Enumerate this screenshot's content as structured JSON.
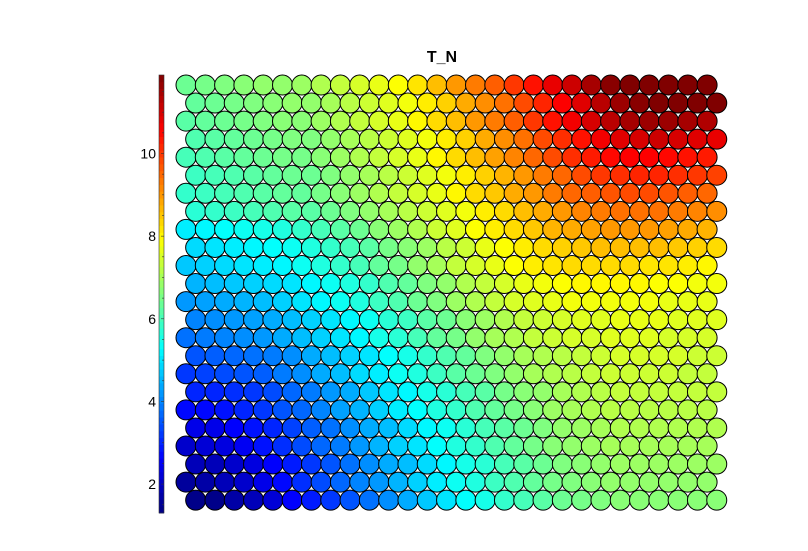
{
  "chart_data": {
    "type": "heatmap",
    "title": "T_N",
    "xlabel": "",
    "ylabel": "",
    "grid": "hexagonal",
    "rows": 24,
    "cols": 28,
    "colorbar": {
      "range": [
        1.3,
        11.9
      ],
      "ticks": [
        2,
        4,
        6,
        8,
        10
      ],
      "tick_labels": [
        "2",
        "4",
        "6",
        "8",
        "10"
      ],
      "colormap": "jet",
      "orientation": "vertical",
      "placement": "left"
    },
    "values": [
      [
        6.4,
        6.5,
        6.6,
        6.7,
        6.8,
        6.8,
        6.9,
        7.1,
        7.3,
        7.5,
        7.7,
        7.9,
        8.2,
        8.6,
        9.0,
        9.3,
        9.6,
        10.0,
        10.4,
        10.8,
        11.1,
        11.5,
        11.8,
        11.9,
        11.9,
        11.9,
        11.9,
        11.9
      ],
      [
        6.3,
        6.4,
        6.5,
        6.6,
        6.7,
        6.8,
        6.8,
        7.0,
        7.2,
        7.4,
        7.6,
        7.8,
        8.1,
        8.4,
        8.8,
        9.1,
        9.4,
        9.8,
        10.2,
        10.6,
        10.9,
        11.3,
        11.6,
        11.8,
        11.9,
        11.9,
        11.9,
        11.9
      ],
      [
        6.2,
        6.3,
        6.4,
        6.5,
        6.6,
        6.7,
        6.7,
        6.9,
        7.1,
        7.3,
        7.5,
        7.7,
        8.0,
        8.3,
        8.6,
        9.0,
        9.3,
        9.6,
        10.0,
        10.4,
        10.7,
        11.0,
        11.3,
        11.5,
        11.6,
        11.6,
        11.5,
        11.4
      ],
      [
        6.1,
        6.2,
        6.3,
        6.4,
        6.5,
        6.6,
        6.6,
        6.8,
        7.0,
        7.2,
        7.4,
        7.6,
        7.8,
        8.1,
        8.4,
        8.8,
        9.1,
        9.4,
        9.8,
        10.1,
        10.4,
        10.7,
        10.9,
        11.0,
        11.1,
        11.0,
        10.9,
        10.8
      ],
      [
        6.0,
        6.1,
        6.2,
        6.3,
        6.4,
        6.5,
        6.5,
        6.7,
        6.9,
        7.1,
        7.3,
        7.5,
        7.7,
        8.0,
        8.3,
        8.6,
        8.9,
        9.2,
        9.5,
        9.8,
        10.1,
        10.3,
        10.5,
        10.6,
        10.6,
        10.5,
        10.4,
        10.3
      ],
      [
        5.9,
        6.0,
        6.1,
        6.2,
        6.3,
        6.4,
        6.4,
        6.6,
        6.8,
        7.0,
        7.2,
        7.4,
        7.6,
        7.8,
        8.1,
        8.4,
        8.7,
        9.0,
        9.3,
        9.5,
        9.8,
        10.0,
        10.1,
        10.2,
        10.2,
        10.1,
        10.0,
        9.9
      ],
      [
        5.8,
        5.9,
        6.0,
        6.1,
        6.2,
        6.3,
        6.3,
        6.5,
        6.7,
        6.9,
        7.1,
        7.3,
        7.5,
        7.7,
        8.0,
        8.3,
        8.5,
        8.8,
        9.0,
        9.3,
        9.5,
        9.6,
        9.7,
        9.8,
        9.8,
        9.7,
        9.6,
        9.5
      ],
      [
        5.7,
        5.8,
        5.9,
        6.0,
        6.1,
        6.2,
        6.2,
        6.4,
        6.6,
        6.8,
        7.0,
        7.2,
        7.4,
        7.6,
        7.8,
        8.1,
        8.3,
        8.6,
        8.8,
        9.0,
        9.2,
        9.3,
        9.4,
        9.4,
        9.4,
        9.3,
        9.2,
        9.1
      ],
      [
        5.1,
        5.2,
        5.3,
        5.4,
        5.5,
        5.6,
        5.8,
        6.0,
        6.2,
        6.4,
        6.7,
        6.9,
        7.1,
        7.4,
        7.6,
        7.9,
        8.1,
        8.3,
        8.5,
        8.7,
        8.8,
        8.9,
        9.0,
        9.0,
        9.0,
        8.9,
        8.8,
        8.7
      ],
      [
        4.9,
        5.0,
        5.1,
        5.2,
        5.3,
        5.4,
        5.6,
        5.8,
        6.0,
        6.2,
        6.5,
        6.7,
        6.9,
        7.2,
        7.4,
        7.7,
        7.9,
        8.1,
        8.3,
        8.4,
        8.5,
        8.6,
        8.6,
        8.6,
        8.6,
        8.5,
        8.4,
        8.3
      ],
      [
        4.7,
        4.8,
        4.9,
        5.0,
        5.1,
        5.2,
        5.4,
        5.6,
        5.8,
        6.0,
        6.3,
        6.5,
        6.8,
        7.0,
        7.3,
        7.5,
        7.7,
        7.9,
        8.1,
        8.2,
        8.3,
        8.3,
        8.3,
        8.3,
        8.2,
        8.2,
        8.1,
        8.0
      ],
      [
        4.5,
        4.6,
        4.7,
        4.8,
        4.9,
        5.0,
        5.2,
        5.4,
        5.6,
        5.8,
        6.1,
        6.3,
        6.6,
        6.8,
        7.1,
        7.3,
        7.5,
        7.7,
        7.8,
        7.9,
        8.0,
        8.0,
        8.0,
        8.0,
        7.9,
        7.9,
        7.8,
        7.8
      ],
      [
        4.2,
        4.3,
        4.4,
        4.5,
        4.6,
        4.8,
        5.0,
        5.2,
        5.4,
        5.6,
        5.9,
        6.1,
        6.4,
        6.6,
        6.9,
        7.1,
        7.3,
        7.5,
        7.6,
        7.7,
        7.8,
        7.8,
        7.8,
        7.8,
        7.8,
        7.7,
        7.7,
        7.7
      ],
      [
        4.0,
        4.1,
        4.2,
        4.3,
        4.4,
        4.6,
        4.8,
        5.0,
        5.2,
        5.4,
        5.7,
        5.9,
        6.2,
        6.4,
        6.7,
        6.9,
        7.1,
        7.3,
        7.4,
        7.5,
        7.6,
        7.6,
        7.7,
        7.7,
        7.7,
        7.6,
        7.6,
        7.6
      ],
      [
        3.8,
        3.9,
        4.0,
        4.1,
        4.2,
        4.4,
        4.6,
        4.8,
        5.0,
        5.2,
        5.5,
        5.7,
        6.0,
        6.3,
        6.5,
        6.8,
        7.0,
        7.1,
        7.3,
        7.4,
        7.5,
        7.5,
        7.6,
        7.6,
        7.6,
        7.5,
        7.5,
        7.5
      ],
      [
        3.5,
        3.6,
        3.7,
        3.8,
        3.9,
        4.1,
        4.4,
        4.6,
        4.8,
        5.0,
        5.3,
        5.5,
        5.8,
        6.1,
        6.3,
        6.6,
        6.8,
        7.0,
        7.1,
        7.2,
        7.3,
        7.4,
        7.5,
        7.5,
        7.5,
        7.5,
        7.4,
        7.4
      ],
      [
        3.2,
        3.3,
        3.4,
        3.5,
        3.6,
        3.9,
        4.1,
        4.4,
        4.6,
        4.9,
        5.1,
        5.4,
        5.6,
        5.9,
        6.2,
        6.4,
        6.6,
        6.8,
        7.0,
        7.1,
        7.2,
        7.3,
        7.4,
        7.4,
        7.4,
        7.4,
        7.3,
        7.3
      ],
      [
        3.0,
        3.0,
        3.1,
        3.2,
        3.4,
        3.7,
        3.9,
        4.2,
        4.4,
        4.7,
        5.0,
        5.2,
        5.5,
        5.7,
        6.0,
        6.2,
        6.5,
        6.7,
        6.8,
        7.0,
        7.1,
        7.2,
        7.3,
        7.3,
        7.3,
        7.3,
        7.3,
        7.3
      ],
      [
        2.7,
        2.7,
        2.8,
        3.0,
        3.2,
        3.5,
        3.7,
        4.0,
        4.3,
        4.5,
        4.8,
        5.1,
        5.3,
        5.6,
        5.8,
        6.1,
        6.3,
        6.5,
        6.7,
        6.9,
        7.0,
        7.1,
        7.2,
        7.2,
        7.2,
        7.2,
        7.2,
        7.2
      ],
      [
        2.4,
        2.4,
        2.6,
        2.8,
        3.0,
        3.3,
        3.6,
        3.8,
        4.1,
        4.4,
        4.6,
        4.9,
        5.2,
        5.4,
        5.7,
        6.0,
        6.2,
        6.4,
        6.6,
        6.8,
        6.9,
        7.0,
        7.1,
        7.1,
        7.1,
        7.1,
        7.1,
        7.1
      ],
      [
        2.1,
        2.2,
        2.3,
        2.5,
        2.8,
        3.1,
        3.4,
        3.7,
        3.9,
        4.2,
        4.5,
        4.8,
        5.0,
        5.3,
        5.6,
        5.8,
        6.1,
        6.3,
        6.5,
        6.7,
        6.8,
        6.9,
        7.0,
        7.0,
        7.0,
        7.0,
        7.0,
        7.0
      ],
      [
        1.9,
        1.9,
        2.1,
        2.3,
        2.6,
        2.9,
        3.2,
        3.5,
        3.8,
        4.1,
        4.4,
        4.6,
        4.9,
        5.2,
        5.5,
        5.7,
        6.0,
        6.2,
        6.4,
        6.6,
        6.7,
        6.8,
        6.9,
        6.9,
        6.9,
        6.9,
        6.9,
        6.9
      ],
      [
        1.6,
        1.7,
        1.9,
        2.1,
        2.4,
        2.7,
        3.1,
        3.4,
        3.7,
        4.0,
        4.2,
        4.5,
        4.8,
        5.1,
        5.4,
        5.6,
        5.9,
        6.1,
        6.3,
        6.5,
        6.6,
        6.7,
        6.8,
        6.8,
        6.8,
        6.8,
        6.8,
        6.8
      ],
      [
        1.4,
        1.4,
        1.7,
        1.9,
        2.2,
        2.6,
        2.9,
        3.2,
        3.5,
        3.8,
        4.1,
        4.4,
        4.7,
        5.0,
        5.3,
        5.5,
        5.8,
        6.0,
        6.2,
        6.4,
        6.5,
        6.6,
        6.7,
        6.7,
        6.7,
        6.7,
        6.7,
        6.7
      ]
    ]
  }
}
